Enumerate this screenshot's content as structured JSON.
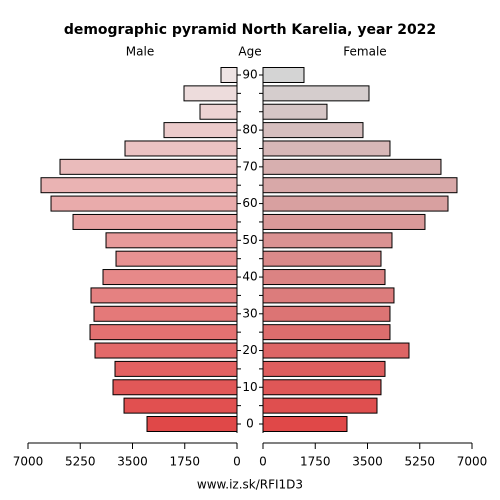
{
  "chart_data": {
    "type": "pyramid",
    "title": "demographic pyramid North Karelia, year 2022",
    "left_label": "Male",
    "center_label": "Age",
    "right_label": "Female",
    "source": "www.iz.sk/RFI1D3",
    "categories": [
      "0",
      null,
      "10",
      null,
      "20",
      null,
      "30",
      null,
      "40",
      null,
      "50",
      null,
      "60",
      null,
      "70",
      null,
      "80",
      null,
      null,
      "90"
    ],
    "series": [
      {
        "name": "Male",
        "side": "left",
        "values": [
          3014,
          3784,
          4153,
          4086,
          4756,
          4923,
          4789,
          4890,
          4488,
          4052,
          4387,
          5492,
          6229,
          6564,
          5928,
          3751,
          2445,
          1239,
          1775,
          536
        ],
        "colors": [
          "#e04848",
          "#e15050",
          "#e15858",
          "#e26161",
          "#e36969",
          "#e47171",
          "#e47979",
          "#e58181",
          "#e68989",
          "#e79292",
          "#e79a9a",
          "#e8a2a2",
          "#e9abab",
          "#eab3b3",
          "#eabbbb",
          "#ebc3c3",
          "#eccbcb",
          "#edd3d3",
          "#eddcdc",
          "#eee4e4"
        ]
      },
      {
        "name": "Female",
        "side": "right",
        "values": [
          2813,
          3818,
          3952,
          4086,
          4890,
          4253,
          4253,
          4387,
          4086,
          3952,
          4320,
          5425,
          6196,
          6497,
          5961,
          4253,
          3349,
          2143,
          3550,
          1373
        ],
        "colors": [
          "#e04848",
          "#df4f4f",
          "#df5757",
          "#de5e5e",
          "#dd6565",
          "#dd6d6d",
          "#dc7474",
          "#dc7c7c",
          "#db8383",
          "#da8a8a",
          "#da9292",
          "#d99999",
          "#d8a0a0",
          "#d8a8a8",
          "#d7afaf",
          "#d7b7b7",
          "#d6bebe",
          "#d5c5c5",
          "#d5cdcd",
          "#d4d4d4"
        ]
      }
    ],
    "xlim": [
      0,
      7000
    ],
    "xticks": [
      0,
      1750,
      3500,
      5250,
      7000
    ]
  }
}
